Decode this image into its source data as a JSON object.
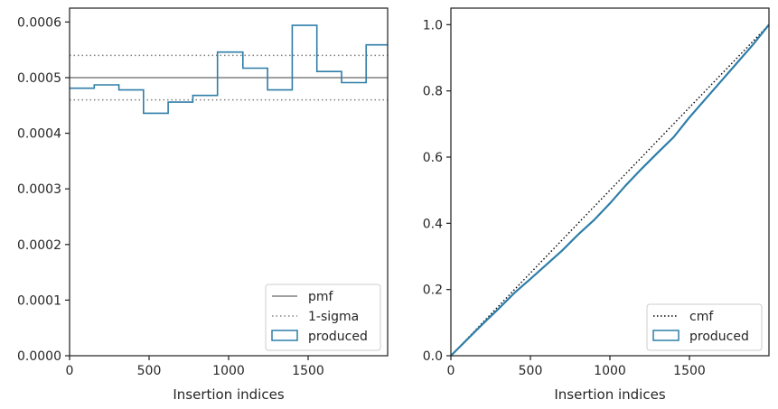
{
  "chart_data": [
    {
      "type": "step",
      "xlabel": "Insertion indices",
      "ylabel": "",
      "xlim": [
        0,
        2000
      ],
      "ylim": [
        0,
        0.000625
      ],
      "x_ticks": [
        0,
        500,
        1000,
        1500
      ],
      "y_ticks": [
        0,
        0.0001,
        0.0002,
        0.0003,
        0.0004,
        0.0005,
        0.0006
      ],
      "x_tick_labels": [
        "0",
        "500",
        "1000",
        "1500"
      ],
      "y_tick_labels": [
        "0.0000",
        "0.0001",
        "0.0002",
        "0.0003",
        "0.0004",
        "0.0005",
        "0.0006"
      ],
      "grid": false,
      "legend_position": "lower-right",
      "legend": [
        "pmf",
        "1-sigma",
        "produced"
      ],
      "pmf": 0.0005,
      "sigma_band": [
        0.00046,
        0.00054
      ],
      "series": [
        {
          "name": "produced",
          "bin_edges": [
            0,
            155,
            310,
            465,
            620,
            775,
            930,
            1090,
            1245,
            1400,
            1555,
            1710,
            1865,
            2000
          ],
          "values": [
            0.000481,
            0.000487,
            0.000478,
            0.000436,
            0.000456,
            0.000468,
            0.000546,
            0.000517,
            0.000478,
            0.000594,
            0.000511,
            0.000491,
            0.000559
          ]
        }
      ],
      "colors": {
        "produced": "#2e7ea8",
        "pmf": "#808080",
        "sigma": "#808080"
      }
    },
    {
      "type": "line",
      "xlabel": "Insertion indices",
      "ylabel": "",
      "xlim": [
        0,
        2000
      ],
      "ylim": [
        0,
        1.05
      ],
      "x_ticks": [
        0,
        500,
        1000,
        1500
      ],
      "y_ticks": [
        0,
        0.2,
        0.4,
        0.6,
        0.8,
        1.0
      ],
      "x_tick_labels": [
        "0",
        "500",
        "1000",
        "1500"
      ],
      "y_tick_labels": [
        "0.0",
        "0.2",
        "0.4",
        "0.6",
        "0.8",
        "1.0"
      ],
      "grid": false,
      "legend_position": "lower-right",
      "legend": [
        "cmf",
        "produced"
      ],
      "series": [
        {
          "name": "cmf",
          "x": [
            0,
            2000
          ],
          "y": [
            0,
            1.0
          ]
        },
        {
          "name": "produced",
          "x": [
            0,
            100,
            200,
            300,
            400,
            500,
            600,
            700,
            800,
            900,
            1000,
            1100,
            1200,
            1300,
            1400,
            1500,
            1600,
            1700,
            1800,
            1900,
            2000
          ],
          "y": [
            0,
            0.048,
            0.096,
            0.142,
            0.19,
            0.232,
            0.275,
            0.318,
            0.366,
            0.41,
            0.46,
            0.515,
            0.565,
            0.613,
            0.66,
            0.72,
            0.775,
            0.83,
            0.885,
            0.94,
            1.0
          ]
        }
      ],
      "colors": {
        "produced": "#2e7ea8",
        "cmf": "#000000"
      }
    }
  ]
}
